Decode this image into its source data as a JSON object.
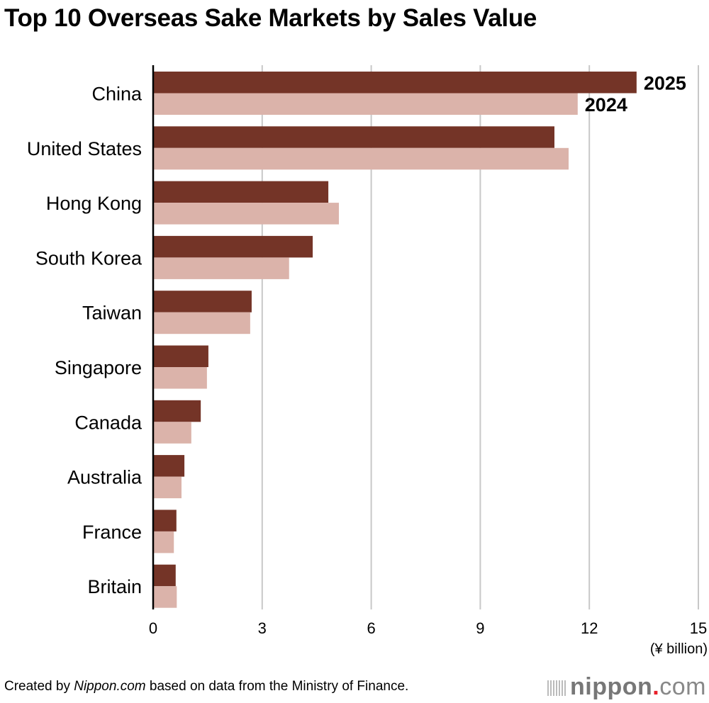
{
  "chart_data": {
    "type": "bar",
    "orientation": "horizontal",
    "title": "Top 10 Overseas Sake Markets by Sales Value",
    "categories": [
      "China",
      "United States",
      "Hong Kong",
      "South Korea",
      "Taiwan",
      "Singapore",
      "Canada",
      "Australia",
      "France",
      "Britain"
    ],
    "series": [
      {
        "name": "2025",
        "color": "#743427",
        "values": [
          13.3,
          11.04,
          4.82,
          4.39,
          2.71,
          1.52,
          1.31,
          0.86,
          0.64,
          0.62
        ]
      },
      {
        "name": "2024",
        "color": "#dbb3aa",
        "values": [
          11.68,
          11.43,
          5.11,
          3.74,
          2.67,
          1.48,
          1.05,
          0.78,
          0.57,
          0.65
        ]
      }
    ],
    "xlabel": "(¥ billion)",
    "xlim": [
      0,
      15
    ],
    "xticks": [
      "0",
      "3",
      "6",
      "9",
      "12",
      "15"
    ],
    "grid": "vertical",
    "legend": "inline labels at end of China bars"
  },
  "footer": {
    "credit_prefix": "Created by ",
    "credit_source": "Nippon.com",
    "credit_suffix": " based on data from the Ministry of Finance.",
    "logo": "nippon.com"
  }
}
